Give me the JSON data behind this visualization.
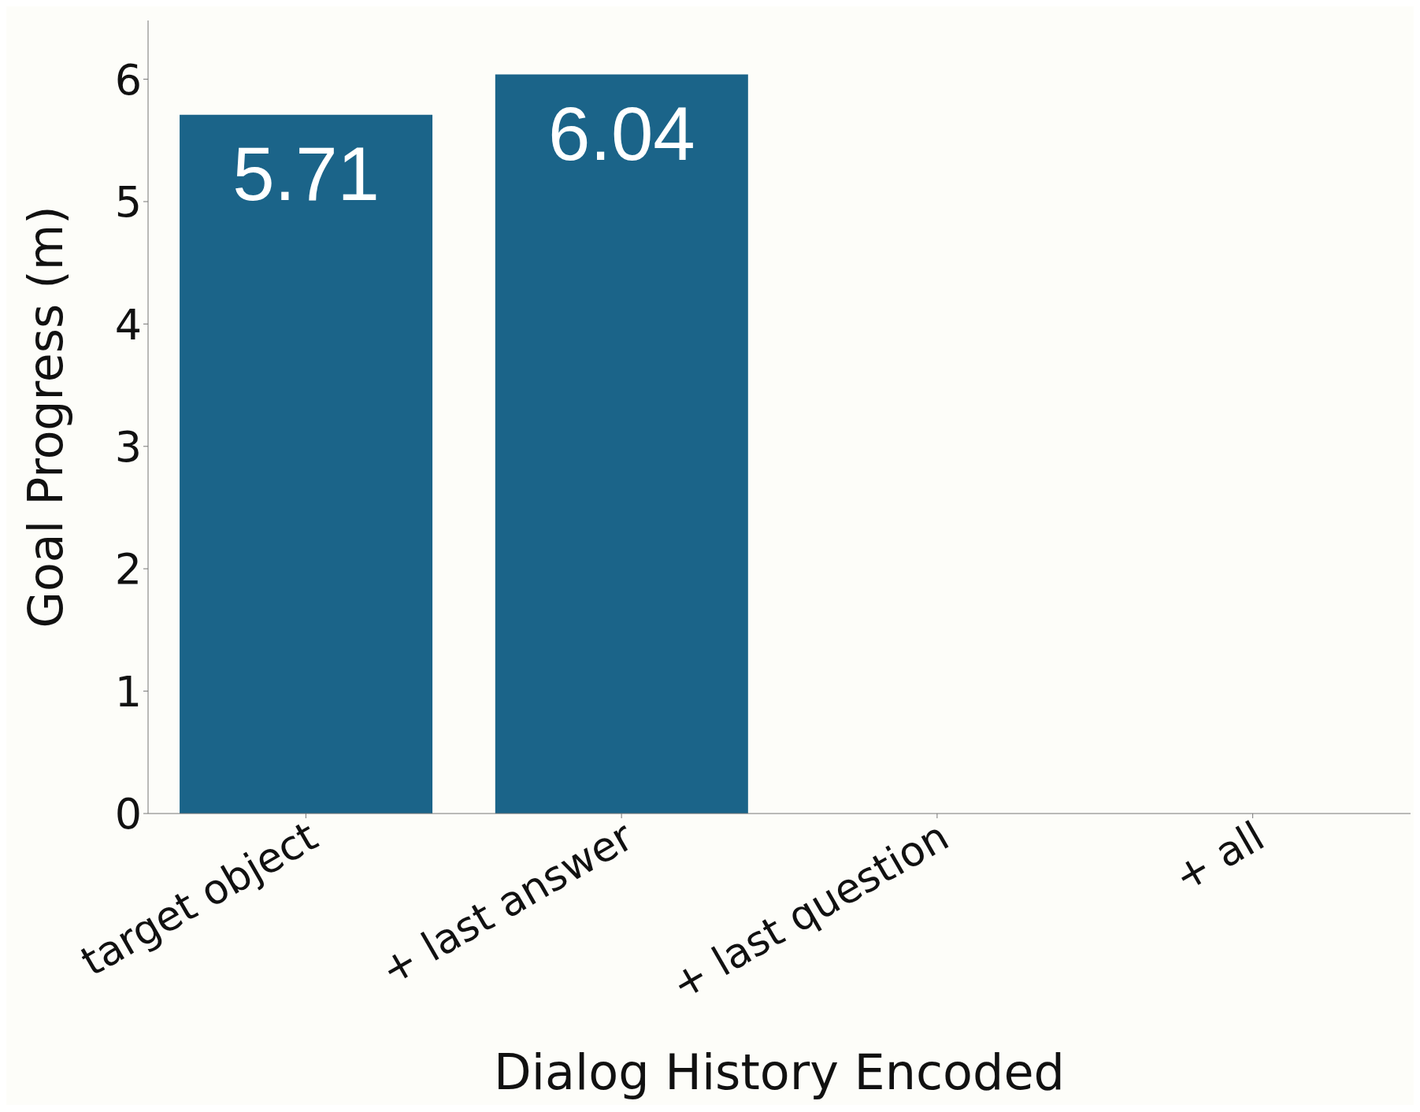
{
  "chart_data": {
    "type": "bar",
    "xlabel": "Dialog History Encoded",
    "ylabel": "Goal Progress (m)",
    "categories": [
      "target object",
      "+ last answer",
      "+ last question",
      "+ all"
    ],
    "values": [
      5.71,
      6.04,
      null,
      null
    ],
    "color": "#1b6489",
    "ylim": [
      0,
      6.48
    ],
    "yticks": [
      0,
      1,
      2,
      3,
      4,
      5,
      6
    ],
    "grid": false,
    "data_labels": true
  }
}
